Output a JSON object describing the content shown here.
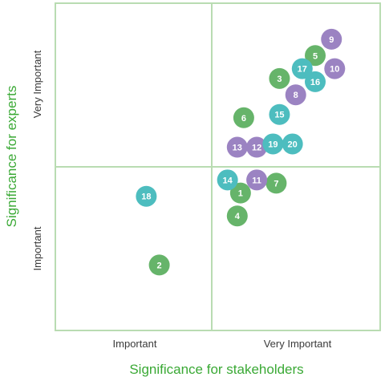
{
  "chart_data": {
    "type": "scatter",
    "xlabel": "Significance for stakeholders",
    "ylabel": "Significance for experts",
    "x_ticks": [
      "Important",
      "Very Important"
    ],
    "y_ticks": [
      "Important",
      "Very Important"
    ],
    "xlim": [
      0,
      10
    ],
    "ylim": [
      0,
      10
    ],
    "colors": {
      "green": "#66b46a",
      "teal": "#4dbdbf",
      "purple": "#9b83c2",
      "grid": "#b9dcb2",
      "axis_title": "#3aa935"
    },
    "points": [
      {
        "label": "1",
        "x": 5.7,
        "y": 4.2,
        "color": "green"
      },
      {
        "label": "2",
        "x": 3.2,
        "y": 2.0,
        "color": "green"
      },
      {
        "label": "3",
        "x": 6.9,
        "y": 7.7,
        "color": "green"
      },
      {
        "label": "4",
        "x": 5.6,
        "y": 3.5,
        "color": "green"
      },
      {
        "label": "5",
        "x": 8.0,
        "y": 8.4,
        "color": "green"
      },
      {
        "label": "6",
        "x": 5.8,
        "y": 6.5,
        "color": "green"
      },
      {
        "label": "7",
        "x": 6.8,
        "y": 4.5,
        "color": "green"
      },
      {
        "label": "8",
        "x": 7.4,
        "y": 7.2,
        "color": "purple"
      },
      {
        "label": "9",
        "x": 8.5,
        "y": 8.9,
        "color": "purple"
      },
      {
        "label": "10",
        "x": 8.6,
        "y": 8.0,
        "color": "purple"
      },
      {
        "label": "11",
        "x": 6.2,
        "y": 4.6,
        "color": "purple"
      },
      {
        "label": "12",
        "x": 6.2,
        "y": 5.6,
        "color": "purple"
      },
      {
        "label": "13",
        "x": 5.6,
        "y": 5.6,
        "color": "purple"
      },
      {
        "label": "14",
        "x": 5.3,
        "y": 4.6,
        "color": "teal"
      },
      {
        "label": "15",
        "x": 6.9,
        "y": 6.6,
        "color": "teal"
      },
      {
        "label": "16",
        "x": 8.0,
        "y": 7.6,
        "color": "teal"
      },
      {
        "label": "17",
        "x": 7.6,
        "y": 8.0,
        "color": "teal"
      },
      {
        "label": "18",
        "x": 2.8,
        "y": 4.1,
        "color": "teal"
      },
      {
        "label": "19",
        "x": 6.7,
        "y": 5.7,
        "color": "teal"
      },
      {
        "label": "20",
        "x": 7.3,
        "y": 5.7,
        "color": "teal"
      }
    ]
  }
}
